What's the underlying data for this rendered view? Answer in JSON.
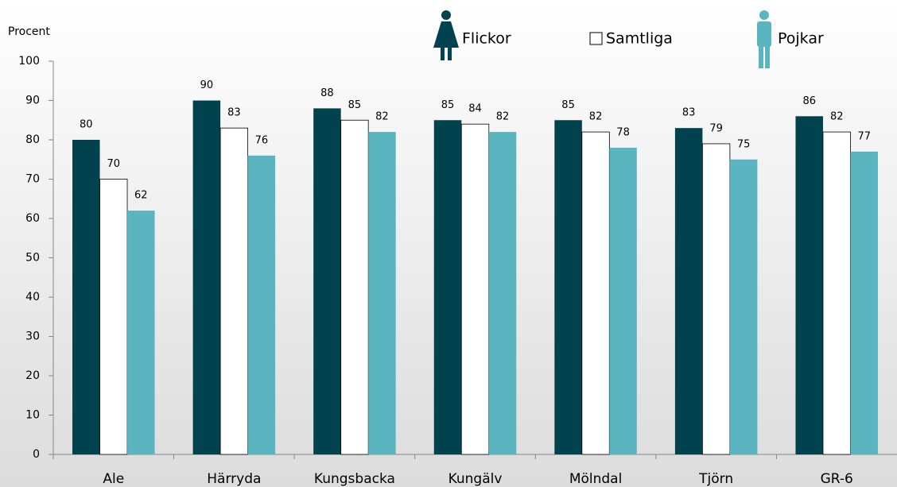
{
  "chart_data": {
    "type": "bar",
    "y_axis_label": "Procent",
    "categories": [
      "Ale",
      "Härryda",
      "Kungsbacka",
      "Kungälv",
      "Mölndal",
      "Tjörn",
      "GR-6"
    ],
    "series": [
      {
        "name": "Flickor",
        "color": "#00434f",
        "values": [
          80,
          90,
          88,
          85,
          85,
          83,
          86
        ]
      },
      {
        "name": "Samtliga",
        "color": "#ffffff",
        "values": [
          70,
          83,
          85,
          84,
          82,
          79,
          82
        ]
      },
      {
        "name": "Pojkar",
        "color": "#5bb5c0",
        "values": [
          62,
          76,
          82,
          82,
          78,
          75,
          77
        ]
      }
    ],
    "ylim": [
      0,
      100
    ],
    "yticks": [
      0,
      10,
      20,
      30,
      40,
      50,
      60,
      70,
      80,
      90,
      100
    ],
    "legend": "top"
  }
}
